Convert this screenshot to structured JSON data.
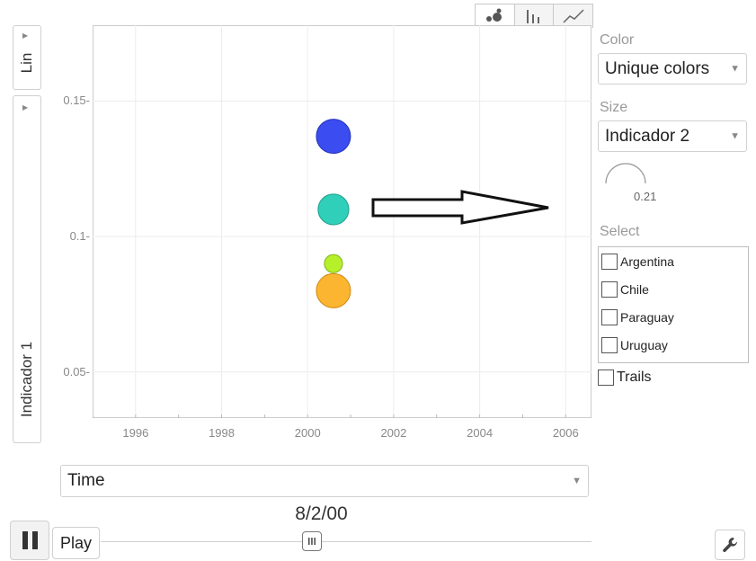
{
  "chart_tabs": [
    {
      "icon": "bubble-chart-icon",
      "active": true
    },
    {
      "icon": "bar-chart-icon",
      "active": false
    },
    {
      "icon": "line-chart-icon",
      "active": false
    }
  ],
  "y_scale": {
    "label": "Lin"
  },
  "y_axis_selector": {
    "label": "Indicador 1"
  },
  "x_axis_selector": {
    "label": "Time"
  },
  "chart_data": {
    "type": "scatter",
    "xlim": [
      1995.0,
      2006.6
    ],
    "ylim": [
      0.033,
      0.178
    ],
    "x_ticks": [
      1996,
      1998,
      2000,
      2002,
      2004,
      2006
    ],
    "x_tick_labels": [
      "1996",
      "1998",
      "2000",
      "2002",
      "2004",
      "2006"
    ],
    "y_ticks": [
      0.05,
      0.1,
      0.15
    ],
    "y_tick_labels": [
      "0.05",
      "0.1",
      "0.15"
    ],
    "grid": true,
    "points": [
      {
        "x": 2000.6,
        "y": 0.137,
        "size": 1.0,
        "color": "#3b4cf0",
        "stroke": "#2633b8"
      },
      {
        "x": 2000.6,
        "y": 0.11,
        "size": 0.9,
        "color": "#2fcfb9",
        "stroke": "#1f9e8c"
      },
      {
        "x": 2000.6,
        "y": 0.09,
        "size": 0.53,
        "color": "#b6f02a",
        "stroke": "#84b41a"
      },
      {
        "x": 2000.6,
        "y": 0.08,
        "size": 1.0,
        "color": "#fcb530",
        "stroke": "#cf8a13"
      }
    ]
  },
  "panel": {
    "color_label": "Color",
    "color_value": "Unique colors",
    "size_label": "Size",
    "size_value": "Indicador 2",
    "size_gauge_value": "0.21",
    "select_label": "Select",
    "select_items": [
      "Argentina",
      "Chile",
      "Paraguay",
      "Uruguay"
    ],
    "trails_label": "Trails"
  },
  "playback": {
    "play_label": "Play",
    "current_time": "8/2/00",
    "thumb_position": 0.43
  }
}
